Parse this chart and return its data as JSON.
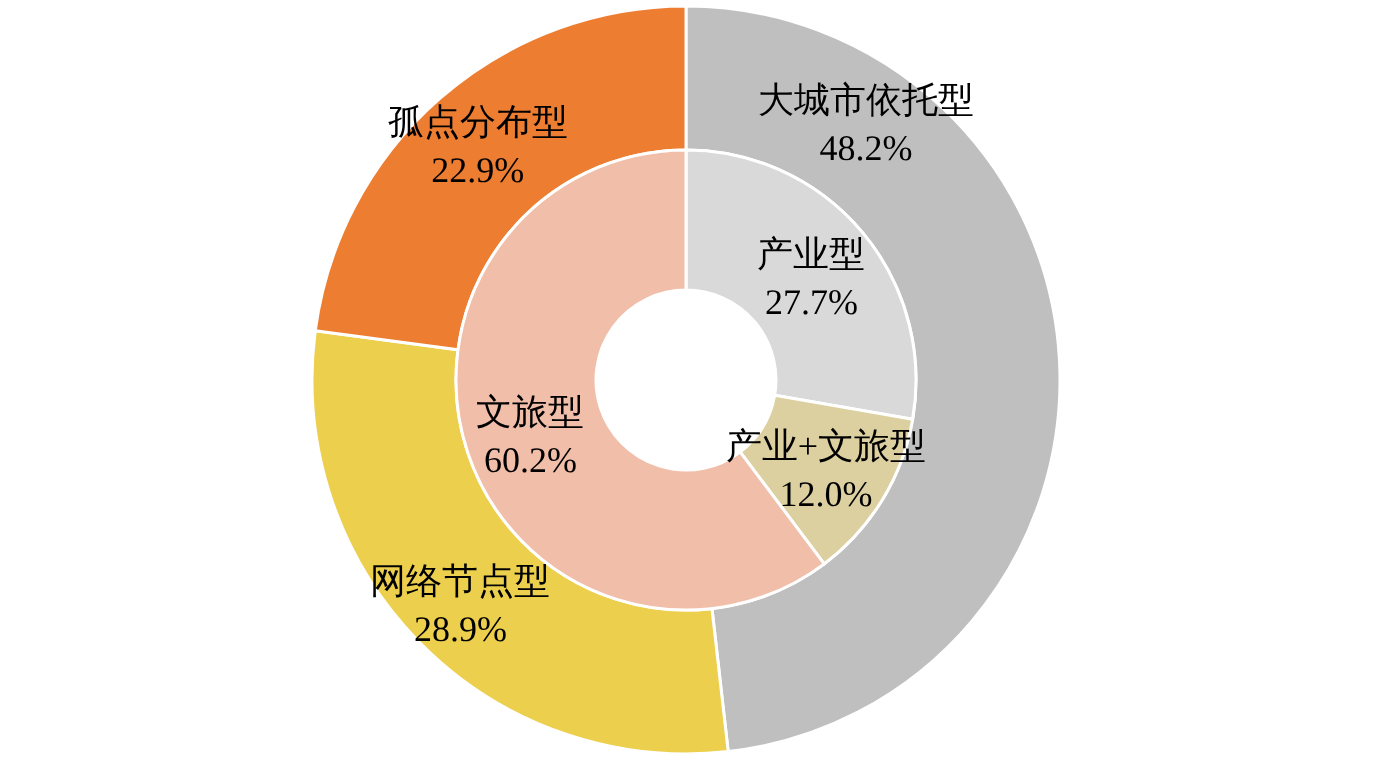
{
  "chart_data": [
    {
      "type": "donut",
      "categories": [
        "大城市依托型",
        "网络节点型",
        "孤点分布型"
      ],
      "values": [
        48.2,
        28.9,
        22.9
      ],
      "colors": [
        "#bfbfbf",
        "#edcf4e",
        "#ed7d31"
      ],
      "value_labels": [
        "48.2%",
        "28.9%",
        "22.9%"
      ]
    },
    {
      "type": "donut",
      "categories": [
        "产业型",
        "产业+文旅型",
        "文旅型"
      ],
      "values": [
        27.7,
        12.0,
        60.2
      ],
      "colors": [
        "#d9d9d9",
        "#dccfa0",
        "#f1bea9"
      ],
      "value_labels": [
        "27.7%",
        "12.0%",
        "60.2%"
      ]
    }
  ]
}
